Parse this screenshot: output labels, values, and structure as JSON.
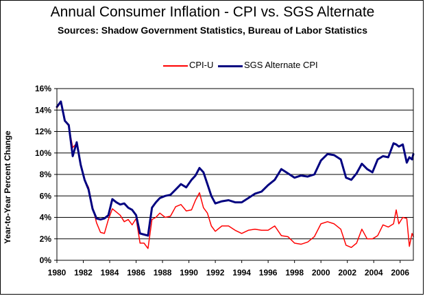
{
  "chart_data": {
    "type": "line",
    "title": "Annual Consumer Inflation - CPI vs. SGS Alternate",
    "subtitle": "Sources: Shadow Government Statistics, Bureau of Labor Statistics",
    "ylabel": "Year-to-Year Percent Change",
    "xlabel": "",
    "xlim": [
      1980,
      2007
    ],
    "ylim": [
      0,
      16
    ],
    "grid": true,
    "legend_position": "top-center",
    "x_ticks": [
      "1980",
      "1982",
      "1984",
      "1986",
      "1988",
      "1990",
      "1992",
      "1994",
      "1996",
      "1998",
      "2000",
      "2002",
      "2004",
      "2006"
    ],
    "y_ticks": [
      "0%",
      "2%",
      "4%",
      "6%",
      "8%",
      "10%",
      "12%",
      "14%",
      "16%"
    ],
    "series": [
      {
        "name": "CPI-U",
        "color": "#ff0000",
        "x": [
          1980.0,
          1980.3,
          1980.6,
          1980.9,
          1981.2,
          1981.5,
          1981.8,
          1982.1,
          1982.4,
          1982.7,
          1983.0,
          1983.3,
          1983.6,
          1983.9,
          1984.2,
          1984.5,
          1984.8,
          1985.1,
          1985.4,
          1985.7,
          1986.0,
          1986.3,
          1986.6,
          1986.9,
          1987.2,
          1987.5,
          1987.8,
          1988.2,
          1988.6,
          1989.0,
          1989.4,
          1989.8,
          1990.2,
          1990.5,
          1990.8,
          1991.1,
          1991.4,
          1991.7,
          1992.0,
          1992.5,
          1993.0,
          1993.5,
          1994.0,
          1994.5,
          1995.0,
          1995.5,
          1996.0,
          1996.5,
          1997.0,
          1997.5,
          1998.0,
          1998.5,
          1999.0,
          1999.5,
          2000.0,
          2000.5,
          2001.0,
          2001.5,
          2001.9,
          2002.3,
          2002.7,
          2003.1,
          2003.5,
          2003.9,
          2004.3,
          2004.7,
          2005.1,
          2005.5,
          2005.7,
          2005.9,
          2006.2,
          2006.5,
          2006.7,
          2006.9,
          2007.0
        ],
        "values": [
          14.2,
          14.7,
          13.0,
          12.5,
          10.5,
          10.9,
          8.9,
          7.5,
          6.8,
          5.0,
          3.5,
          2.6,
          2.5,
          3.8,
          4.8,
          4.5,
          4.2,
          3.6,
          3.8,
          3.3,
          3.9,
          1.6,
          1.6,
          1.1,
          3.8,
          4.0,
          4.4,
          4.0,
          4.1,
          5.0,
          5.2,
          4.6,
          4.7,
          5.6,
          6.3,
          4.9,
          4.4,
          3.2,
          2.7,
          3.2,
          3.2,
          2.8,
          2.5,
          2.8,
          2.9,
          2.8,
          2.8,
          3.2,
          2.3,
          2.2,
          1.6,
          1.5,
          1.7,
          2.2,
          3.4,
          3.6,
          3.4,
          2.9,
          1.4,
          1.2,
          1.6,
          2.9,
          2.0,
          2.0,
          2.3,
          3.3,
          3.1,
          3.4,
          4.7,
          3.4,
          4.0,
          3.9,
          1.3,
          2.5,
          2.2
        ]
      },
      {
        "name": "SGS Alternate CPI",
        "color": "#000080",
        "x": [
          1980.0,
          1980.3,
          1980.6,
          1980.9,
          1981.2,
          1981.5,
          1981.8,
          1982.1,
          1982.4,
          1982.7,
          1983.0,
          1983.3,
          1983.6,
          1983.9,
          1984.2,
          1984.5,
          1984.8,
          1985.1,
          1985.4,
          1985.7,
          1986.0,
          1986.3,
          1986.6,
          1986.9,
          1987.2,
          1987.5,
          1987.8,
          1988.2,
          1988.6,
          1989.0,
          1989.4,
          1989.8,
          1990.2,
          1990.5,
          1990.8,
          1991.1,
          1991.4,
          1991.7,
          1992.0,
          1992.5,
          1993.0,
          1993.5,
          1994.0,
          1994.5,
          1995.0,
          1995.5,
          1996.0,
          1996.5,
          1997.0,
          1997.5,
          1998.0,
          1998.5,
          1999.0,
          1999.5,
          2000.0,
          2000.5,
          2001.0,
          2001.5,
          2001.9,
          2002.3,
          2002.7,
          2003.1,
          2003.5,
          2003.9,
          2004.3,
          2004.7,
          2005.1,
          2005.5,
          2005.7,
          2005.9,
          2006.2,
          2006.5,
          2006.7,
          2006.9,
          2007.0
        ],
        "values": [
          14.3,
          14.8,
          13.0,
          12.6,
          9.7,
          11.0,
          8.9,
          7.5,
          6.6,
          4.8,
          3.9,
          3.8,
          3.9,
          4.2,
          5.7,
          5.4,
          5.2,
          5.3,
          4.9,
          4.7,
          4.2,
          2.5,
          2.4,
          2.3,
          4.9,
          5.4,
          5.8,
          6.0,
          6.1,
          6.6,
          7.1,
          6.8,
          7.5,
          7.9,
          8.6,
          8.2,
          7.1,
          6.0,
          5.3,
          5.5,
          5.6,
          5.4,
          5.4,
          5.8,
          6.2,
          6.4,
          7.0,
          7.5,
          8.5,
          8.1,
          7.7,
          7.9,
          7.8,
          8.0,
          9.3,
          9.9,
          9.8,
          9.4,
          7.7,
          7.5,
          8.1,
          9.0,
          8.5,
          8.2,
          9.4,
          9.7,
          9.6,
          10.9,
          10.8,
          10.6,
          10.8,
          9.1,
          9.6,
          9.4,
          9.9
        ]
      }
    ]
  }
}
